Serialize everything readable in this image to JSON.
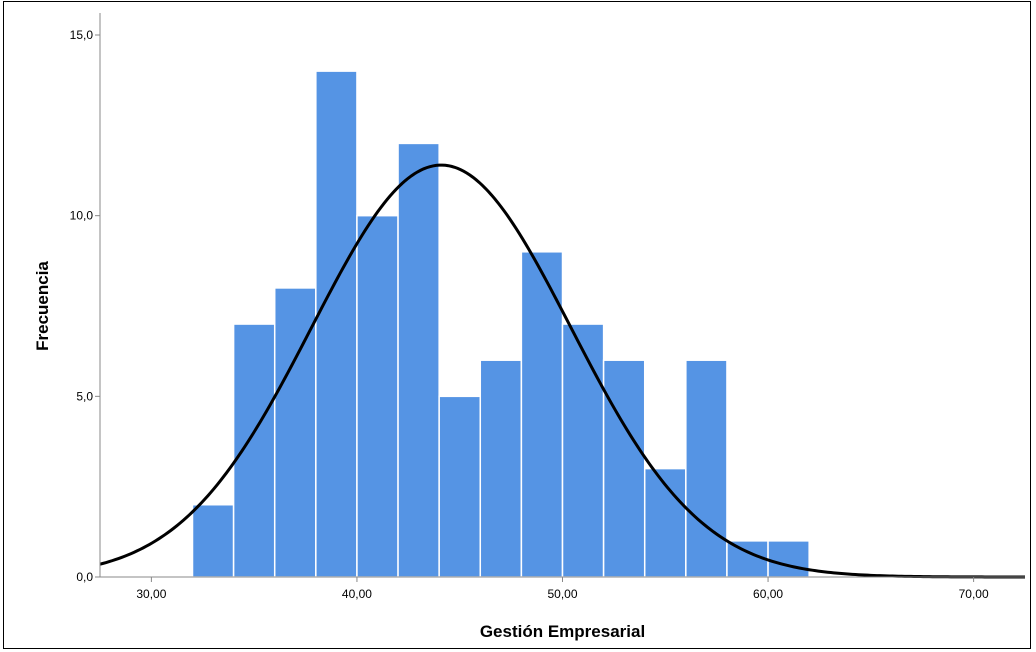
{
  "chart_data": {
    "type": "bar",
    "subtype": "histogram with normal curve",
    "title": "",
    "xlabel": "Gestión Empresarial",
    "ylabel": "Frecuencia",
    "xlim": [
      27.5,
      72.5
    ],
    "ylim": [
      0,
      15
    ],
    "x_ticks": [
      30,
      40,
      50,
      60,
      70
    ],
    "x_tick_labels": [
      "30,00",
      "40,00",
      "50,00",
      "60,00",
      "70,00"
    ],
    "y_ticks": [
      0,
      5,
      10,
      15
    ],
    "y_tick_labels": [
      "0,0",
      "5,0",
      "10,0",
      "15,0"
    ],
    "bin_width": 2,
    "bins": [
      {
        "start": 32,
        "end": 34,
        "count": 2
      },
      {
        "start": 34,
        "end": 36,
        "count": 7
      },
      {
        "start": 36,
        "end": 38,
        "count": 8
      },
      {
        "start": 38,
        "end": 40,
        "count": 14
      },
      {
        "start": 40,
        "end": 42,
        "count": 10
      },
      {
        "start": 42,
        "end": 44,
        "count": 12
      },
      {
        "start": 44,
        "end": 46,
        "count": 5
      },
      {
        "start": 46,
        "end": 48,
        "count": 6
      },
      {
        "start": 48,
        "end": 50,
        "count": 9
      },
      {
        "start": 50,
        "end": 52,
        "count": 7
      },
      {
        "start": 52,
        "end": 54,
        "count": 6
      },
      {
        "start": 54,
        "end": 56,
        "count": 3
      },
      {
        "start": 56,
        "end": 58,
        "count": 6
      },
      {
        "start": 58,
        "end": 60,
        "count": 1
      },
      {
        "start": 60,
        "end": 62,
        "count": 1
      }
    ],
    "normal_curve": {
      "mean": 44.1,
      "std_dev": 6.3,
      "peak": 11.4
    },
    "bar_color": "#5594e4",
    "bar_edge_color": "#ffffff",
    "curve_color": "#000000",
    "grid": false,
    "legend": "none"
  }
}
